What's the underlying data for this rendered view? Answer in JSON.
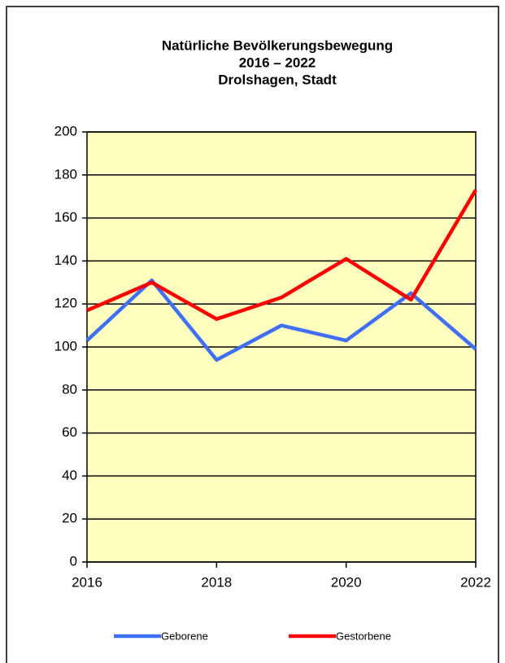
{
  "chart_data": {
    "type": "line",
    "title": [
      "Natürliche Bevölkerungsbewegung",
      "2016 – 2022",
      "Drolshagen, Stadt"
    ],
    "x": [
      2016,
      2017,
      2018,
      2019,
      2020,
      2021,
      2022
    ],
    "series": [
      {
        "name": "Geborene",
        "color": "#3f6ff5",
        "values": [
          103,
          131,
          94,
          110,
          103,
          125,
          99
        ]
      },
      {
        "name": "Gestorbene",
        "color": "#ff0000",
        "values": [
          117,
          130,
          113,
          123,
          141,
          122,
          173
        ]
      }
    ],
    "xlim": [
      2016,
      2022
    ],
    "xticks": [
      2016,
      2018,
      2020,
      2022
    ],
    "ylim": [
      0,
      200
    ],
    "yticks": [
      0,
      20,
      40,
      60,
      80,
      100,
      120,
      140,
      160,
      180,
      200
    ],
    "grid": true,
    "legend": "bottom",
    "plot_background": "#ffffc0"
  }
}
